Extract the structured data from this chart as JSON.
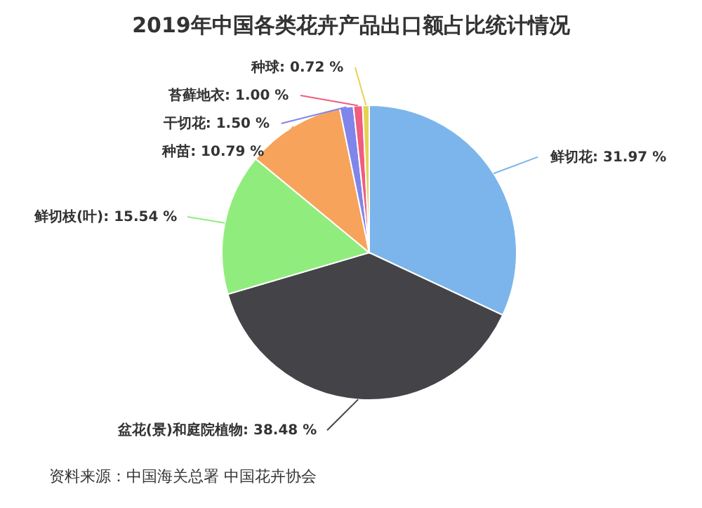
{
  "chart_data": {
    "type": "pie",
    "title": "2019年中国各类花卉产品出口额占比统计情况",
    "categories": [
      "鲜切花",
      "盆花(景)和庭院植物",
      "鲜切枝(叶)",
      "种苗",
      "干切花",
      "苔藓地衣",
      "种球"
    ],
    "values": [
      31.97,
      38.48,
      15.54,
      10.79,
      1.5,
      1.0,
      0.72
    ],
    "colors": [
      "#7cb5ec",
      "#434348",
      "#90ed7d",
      "#f7a35c",
      "#8085e9",
      "#f15c80",
      "#e4d354"
    ],
    "value_labels": [
      ": 31.97 %",
      ": 38.48 %",
      ": 15.54 %",
      ": 10.79 %",
      ": 1.50 %",
      ": 1.00 %",
      ": 0.72 %"
    ],
    "annotations": [
      "资料来源：中国海关总署 中国花卉协会"
    ]
  }
}
